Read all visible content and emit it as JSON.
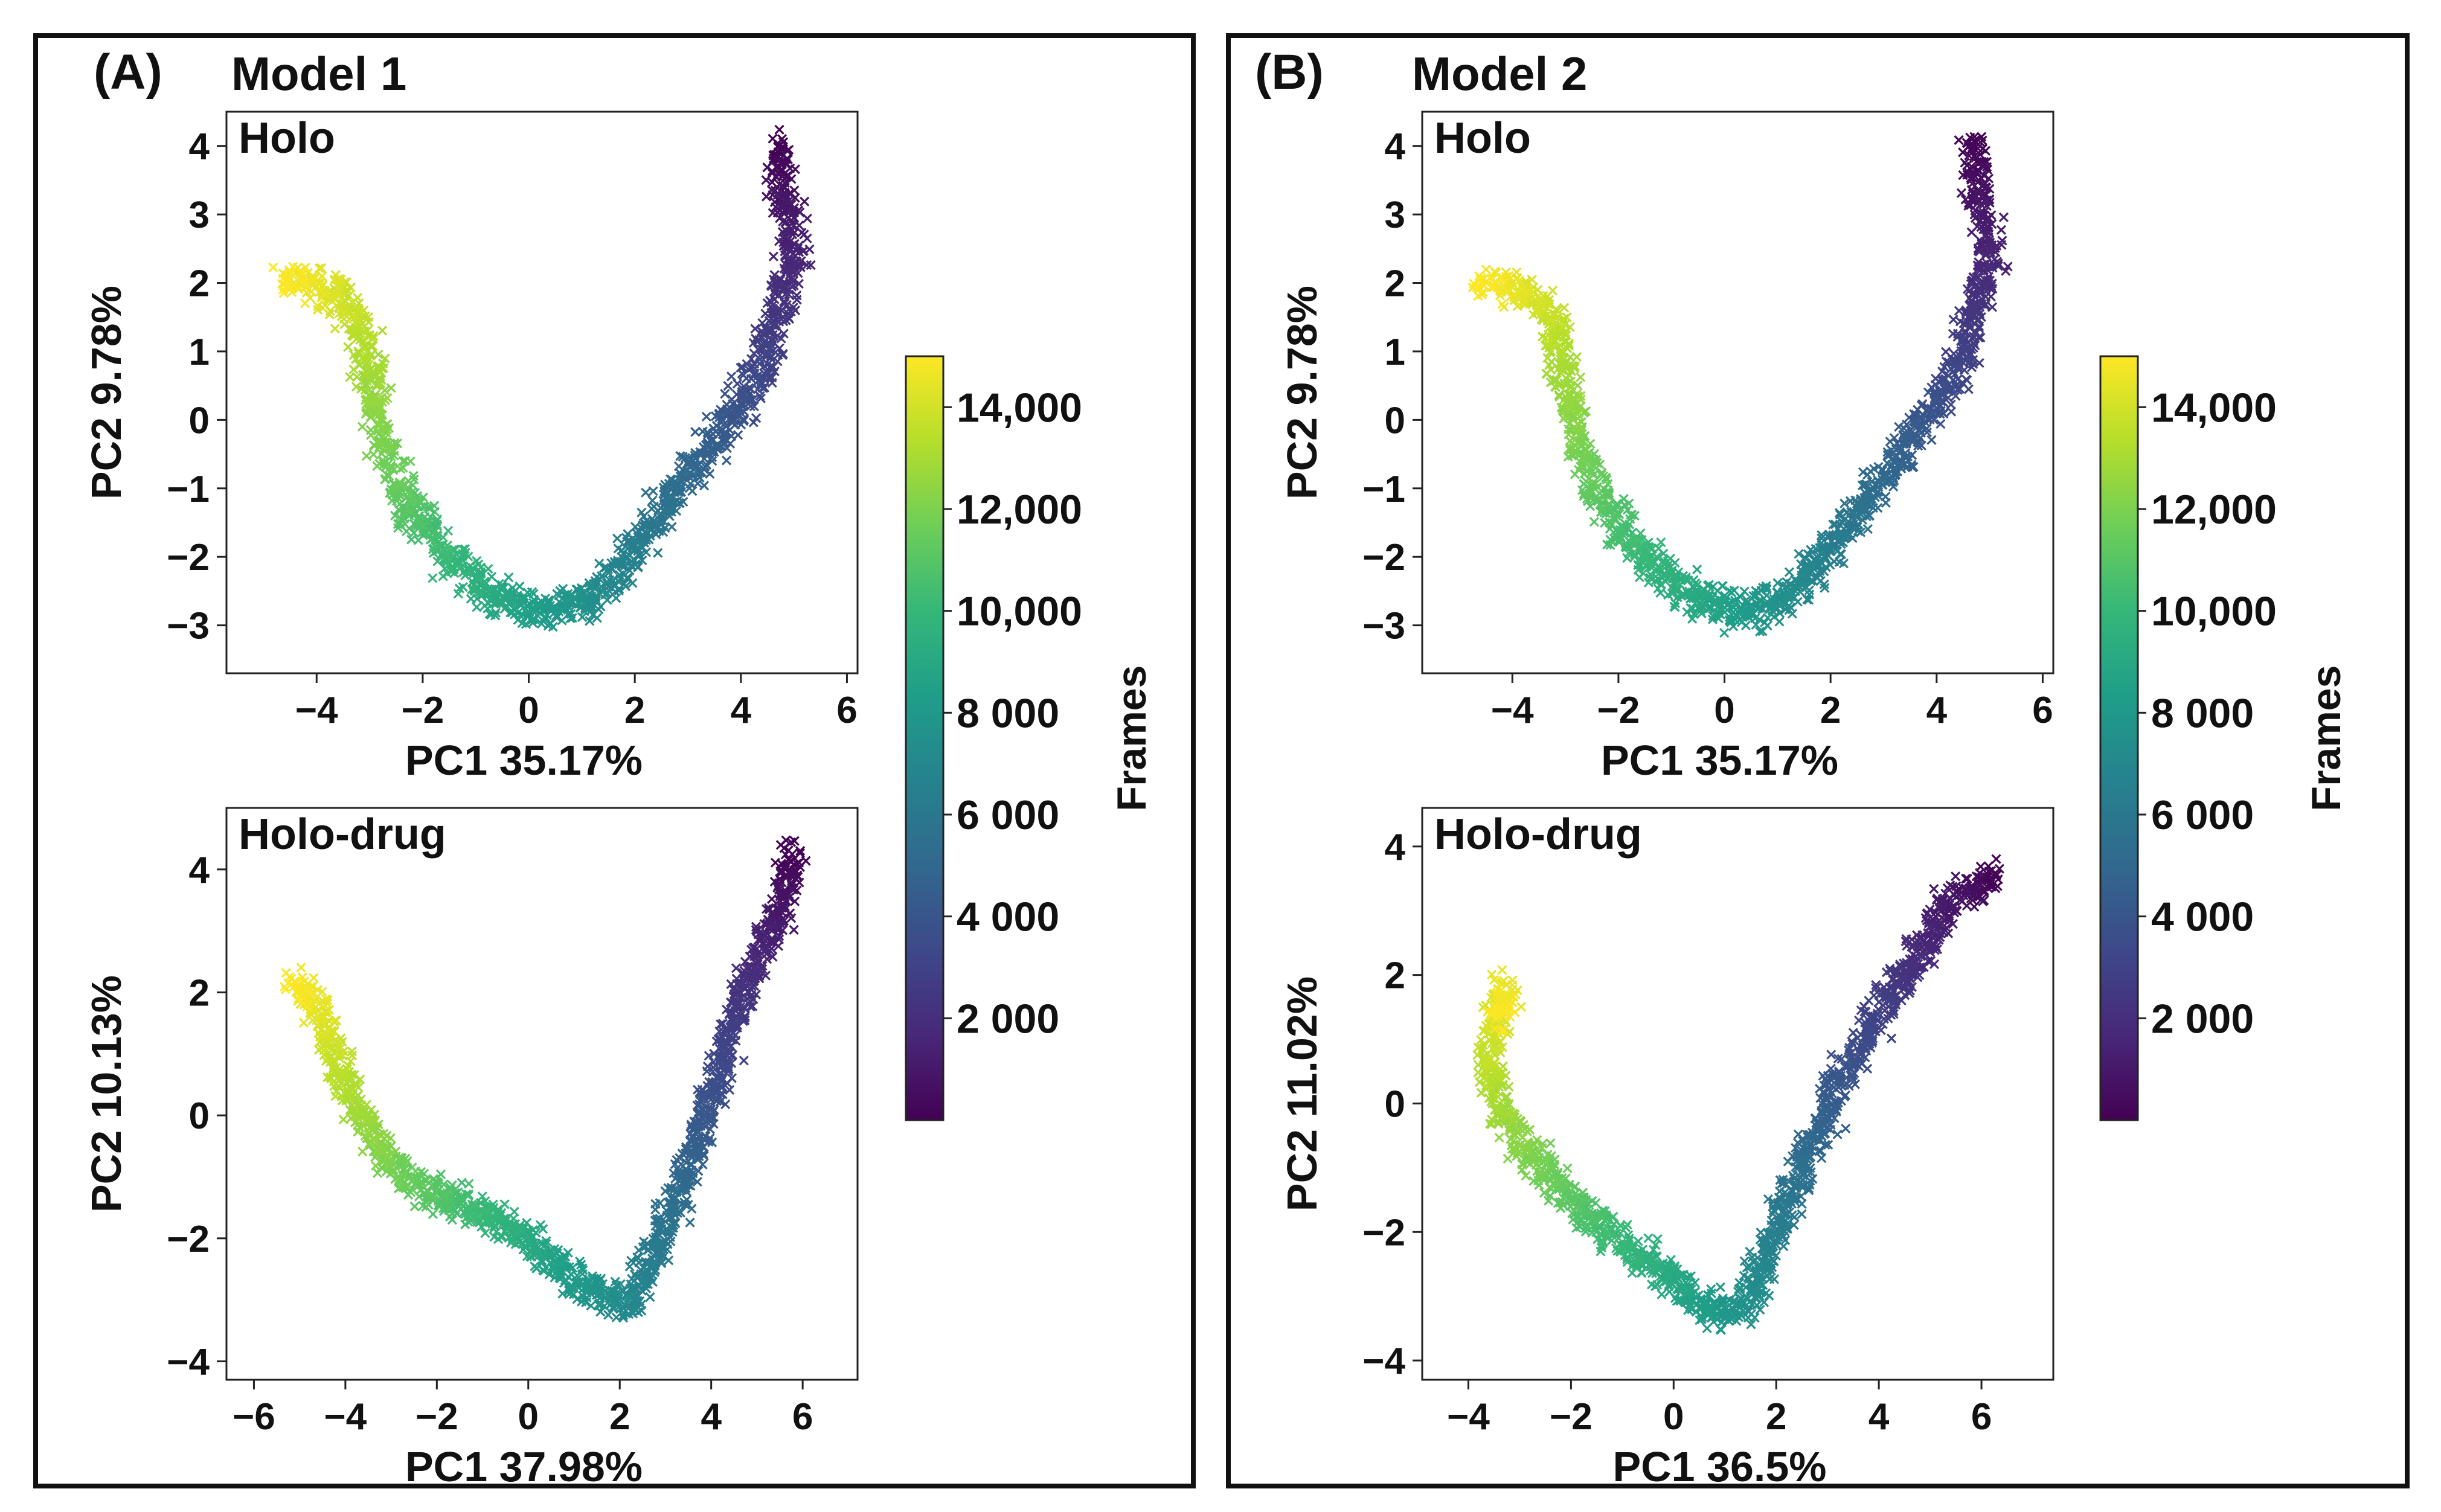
{
  "panels": [
    {
      "label": "(A)",
      "model": "Model 1"
    },
    {
      "label": "(B)",
      "model": "Model 2"
    }
  ],
  "colorbar": {
    "label": "Frames",
    "range": [
      0,
      15000
    ],
    "ticks": [
      {
        "value": 2000,
        "label": "2 000"
      },
      {
        "value": 4000,
        "label": "4 000"
      },
      {
        "value": 6000,
        "label": "6 000"
      },
      {
        "value": 8000,
        "label": "8 000"
      },
      {
        "value": 10000,
        "label": "10,000"
      },
      {
        "value": 12000,
        "label": "12,000"
      },
      {
        "value": 14000,
        "label": "14,000"
      }
    ],
    "colors": [
      "#440154",
      "#482878",
      "#3e4989",
      "#31688e",
      "#26828e",
      "#1f9e89",
      "#35b779",
      "#6ece58",
      "#b5de2b",
      "#fde725"
    ]
  },
  "chart_data": [
    {
      "type": "scatter",
      "panel": "A",
      "title": "Holo",
      "xlabel": "PC1 35.17%",
      "ylabel": "PC2 9.78%",
      "xlim": [
        -5.7,
        6.2
      ],
      "ylim": [
        -3.7,
        4.5
      ],
      "xticks": [
        -4,
        -2,
        0,
        2,
        4,
        6
      ],
      "yticks": [
        -3,
        -2,
        -1,
        0,
        1,
        2,
        3,
        4
      ],
      "marker": "x",
      "frames": 15000,
      "trajectory": [
        [
          4.7,
          4.0
        ],
        [
          4.8,
          3.3
        ],
        [
          5.0,
          2.5
        ],
        [
          4.7,
          1.6
        ],
        [
          4.4,
          0.7
        ],
        [
          3.8,
          0.0
        ],
        [
          3.0,
          -0.8
        ],
        [
          2.2,
          -1.7
        ],
        [
          1.2,
          -2.6
        ],
        [
          0.3,
          -2.8
        ],
        [
          -0.6,
          -2.6
        ],
        [
          -1.5,
          -2.0
        ],
        [
          -2.3,
          -1.2
        ],
        [
          -2.8,
          -0.2
        ],
        [
          -3.1,
          1.0
        ],
        [
          -3.3,
          1.6
        ],
        [
          -3.7,
          1.9
        ],
        [
          -4.3,
          2.0
        ],
        [
          -4.6,
          2.0
        ]
      ]
    },
    {
      "type": "scatter",
      "panel": "A",
      "title": "Holo-drug",
      "xlabel": "PC1 37.98%",
      "ylabel": "PC2 10.13%",
      "xlim": [
        -6.6,
        7.2
      ],
      "ylim": [
        -4.3,
        5.0
      ],
      "xticks": [
        -6,
        -4,
        -2,
        0,
        2,
        4,
        6
      ],
      "yticks": [
        -4,
        -2,
        0,
        2,
        4
      ],
      "marker": "x",
      "frames": 15000,
      "trajectory": [
        [
          5.8,
          4.3
        ],
        [
          5.5,
          3.3
        ],
        [
          4.8,
          2.2
        ],
        [
          4.2,
          0.8
        ],
        [
          3.6,
          -0.6
        ],
        [
          3.0,
          -1.8
        ],
        [
          2.2,
          -3.1
        ],
        [
          1.0,
          -2.7
        ],
        [
          0.0,
          -2.0
        ],
        [
          -1.0,
          -1.6
        ],
        [
          -2.0,
          -1.3
        ],
        [
          -3.0,
          -0.8
        ],
        [
          -3.8,
          0.2
        ],
        [
          -4.3,
          1.2
        ],
        [
          -4.7,
          1.9
        ],
        [
          -5.2,
          2.1
        ]
      ]
    },
    {
      "type": "scatter",
      "panel": "B",
      "title": "Holo",
      "xlabel": "PC1 35.17%",
      "ylabel": "PC2 9.78%",
      "xlim": [
        -5.7,
        6.2
      ],
      "ylim": [
        -3.7,
        4.5
      ],
      "xticks": [
        -4,
        -2,
        0,
        2,
        4,
        6
      ],
      "yticks": [
        -3,
        -2,
        -1,
        0,
        1,
        2,
        3,
        4
      ],
      "marker": "x",
      "frames": 15000,
      "trajectory": [
        [
          4.7,
          4.0
        ],
        [
          4.8,
          3.3
        ],
        [
          5.0,
          2.5
        ],
        [
          4.7,
          1.6
        ],
        [
          4.4,
          0.7
        ],
        [
          3.8,
          0.0
        ],
        [
          3.0,
          -0.8
        ],
        [
          2.2,
          -1.7
        ],
        [
          1.2,
          -2.6
        ],
        [
          0.3,
          -2.8
        ],
        [
          -0.6,
          -2.6
        ],
        [
          -1.5,
          -2.0
        ],
        [
          -2.3,
          -1.2
        ],
        [
          -2.8,
          -0.2
        ],
        [
          -3.1,
          1.0
        ],
        [
          -3.3,
          1.6
        ],
        [
          -3.7,
          1.9
        ],
        [
          -4.3,
          2.0
        ],
        [
          -4.6,
          2.0
        ]
      ]
    },
    {
      "type": "scatter",
      "panel": "B",
      "title": "Holo-drug",
      "xlabel": "PC1 36.5%",
      "ylabel": "PC2 11.02%",
      "xlim": [
        -4.9,
        7.4
      ],
      "ylim": [
        -4.3,
        4.6
      ],
      "xticks": [
        -4,
        -2,
        0,
        2,
        4,
        6
      ],
      "yticks": [
        -4,
        -2,
        0,
        2,
        4
      ],
      "marker": "x",
      "frames": 15000,
      "trajectory": [
        [
          6.3,
          3.5
        ],
        [
          5.5,
          3.2
        ],
        [
          4.8,
          2.4
        ],
        [
          4.0,
          1.4
        ],
        [
          3.3,
          0.4
        ],
        [
          2.6,
          -0.8
        ],
        [
          2.0,
          -2.0
        ],
        [
          1.5,
          -3.1
        ],
        [
          0.8,
          -3.3
        ],
        [
          -0.2,
          -2.6
        ],
        [
          -1.0,
          -2.2
        ],
        [
          -2.0,
          -1.5
        ],
        [
          -3.0,
          -0.6
        ],
        [
          -3.6,
          0.4
        ],
        [
          -3.5,
          1.2
        ],
        [
          -3.3,
          1.8
        ],
        [
          -3.4,
          1.3
        ]
      ]
    }
  ]
}
